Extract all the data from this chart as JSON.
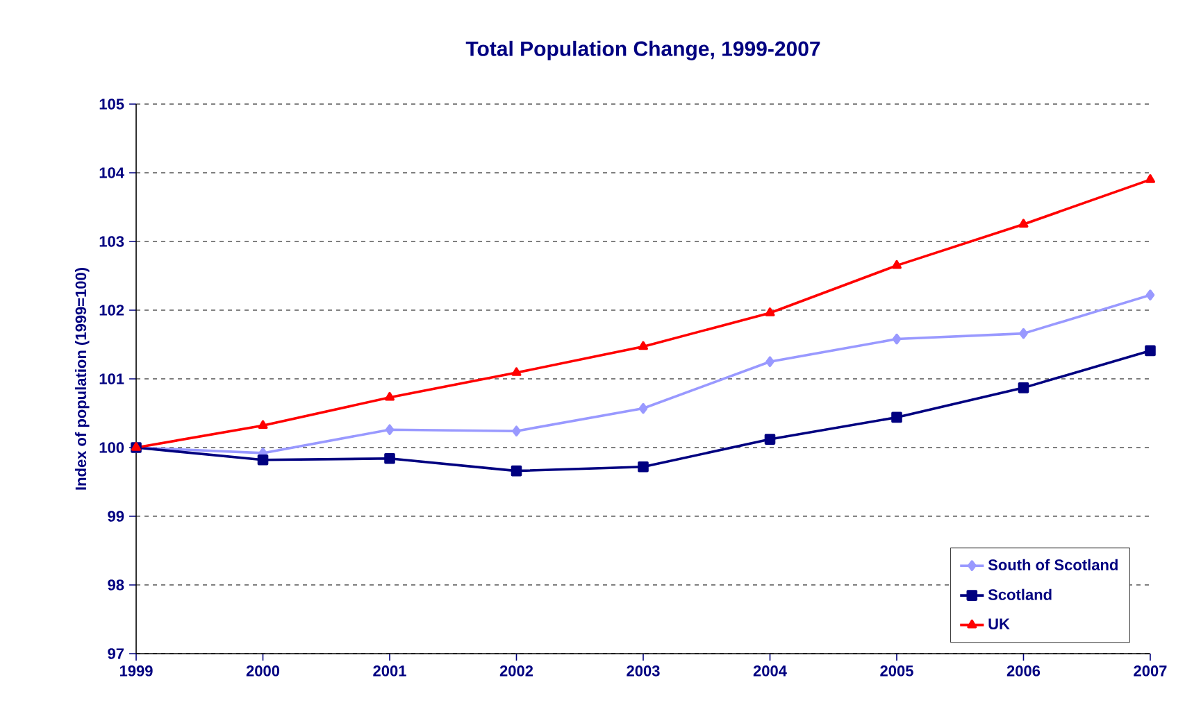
{
  "chart_data": {
    "type": "line",
    "title": "Total Population Change, 1999-2007",
    "ylabel": "Index of population (1999=100)",
    "x": [
      1999,
      2000,
      2001,
      2002,
      2003,
      2004,
      2005,
      2006,
      2007
    ],
    "xlim": [
      1999,
      2007
    ],
    "xticks": [
      1999,
      2000,
      2001,
      2002,
      2003,
      2004,
      2005,
      2006,
      2007
    ],
    "ylim": [
      97,
      105
    ],
    "yticks": [
      97,
      98,
      99,
      100,
      101,
      102,
      103,
      104,
      105
    ],
    "grid": "y",
    "legend": "bottom right",
    "series": [
      {
        "name": "South of Scotland",
        "color": "#9999ff",
        "marker": "diamond",
        "values": [
          100,
          99.92,
          100.26,
          100.24,
          100.57,
          101.25,
          101.58,
          101.66,
          102.22
        ]
      },
      {
        "name": "Scotland",
        "color": "#000080",
        "marker": "square",
        "values": [
          100,
          99.82,
          99.84,
          99.66,
          99.72,
          100.12,
          100.44,
          100.87,
          101.41
        ]
      },
      {
        "name": "UK",
        "color": "#ff0000",
        "marker": "triangle",
        "values": [
          100,
          100.32,
          100.73,
          101.09,
          101.47,
          101.96,
          102.65,
          103.25,
          103.9
        ]
      }
    ]
  }
}
